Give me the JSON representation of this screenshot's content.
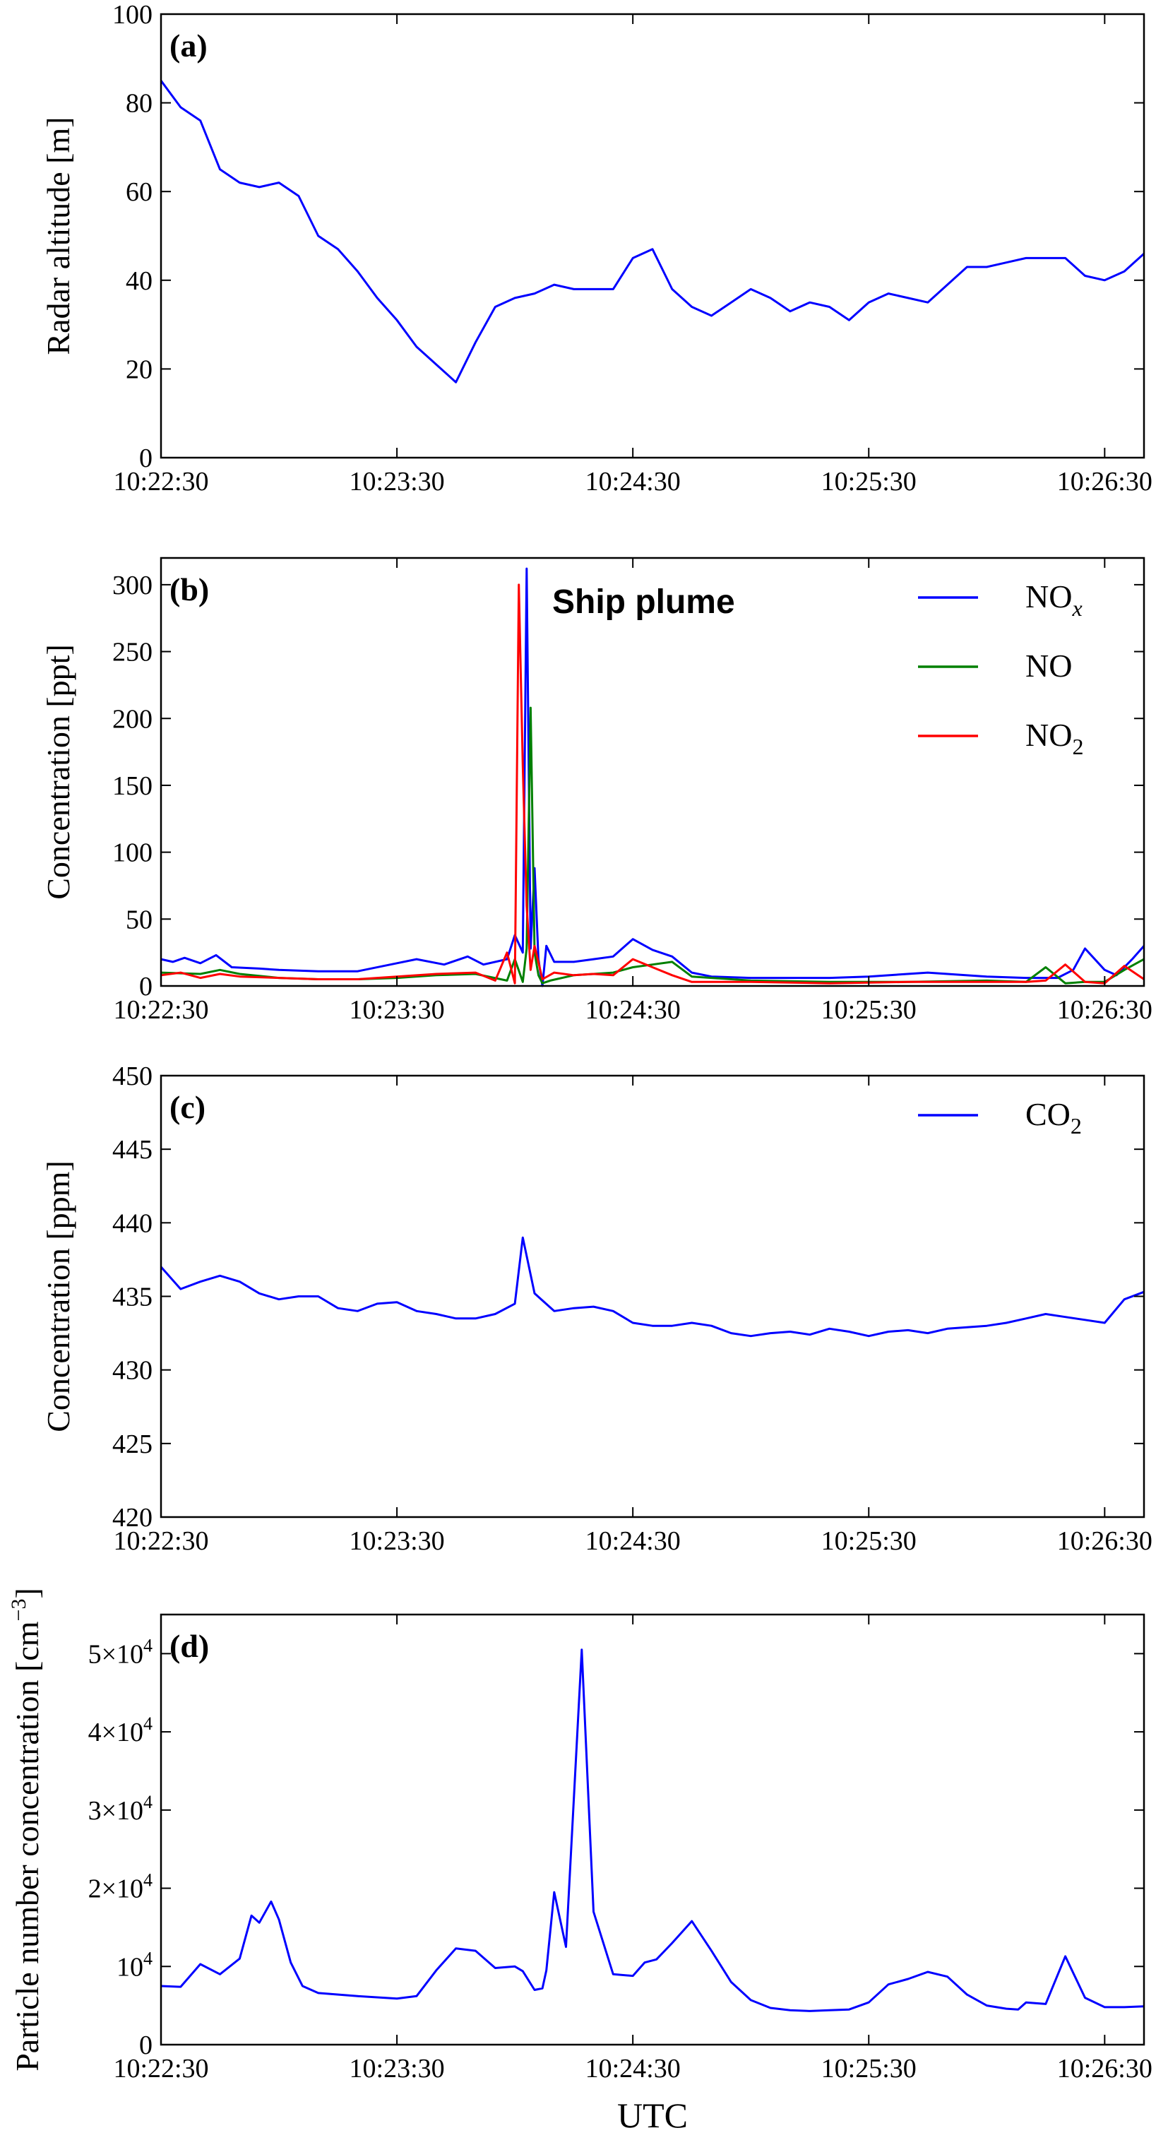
{
  "chart_data": [
    {
      "panel": "(a)",
      "type": "line",
      "ylabel": "Radar altitude [m]",
      "xlabel": "",
      "xlim": [
        "10:22:30",
        "10:26:40"
      ],
      "ylim": [
        0,
        100
      ],
      "yticks": [
        "0",
        "20",
        "40",
        "60",
        "80",
        "100"
      ],
      "xticks": [
        "10:22:30",
        "10:23:30",
        "10:24:30",
        "10:25:30",
        "10:26:30"
      ],
      "series": [
        {
          "color": "#0000ff",
          "x": [
            "10:22:30",
            "10:22:35",
            "10:22:40",
            "10:22:45",
            "10:22:50",
            "10:22:55",
            "10:23:00",
            "10:23:05",
            "10:23:10",
            "10:23:15",
            "10:23:20",
            "10:23:25",
            "10:23:30",
            "10:23:35",
            "10:23:40",
            "10:23:45",
            "10:23:50",
            "10:23:55",
            "10:24:00",
            "10:24:05",
            "10:24:10",
            "10:24:15",
            "10:24:20",
            "10:24:25",
            "10:24:30",
            "10:24:35",
            "10:24:40",
            "10:24:45",
            "10:24:50",
            "10:24:55",
            "10:25:00",
            "10:25:05",
            "10:25:10",
            "10:25:15",
            "10:25:20",
            "10:25:25",
            "10:25:30",
            "10:25:35",
            "10:25:40",
            "10:25:45",
            "10:25:50",
            "10:25:55",
            "10:26:00",
            "10:26:05",
            "10:26:10",
            "10:26:15",
            "10:26:20",
            "10:26:25",
            "10:26:30",
            "10:26:35",
            "10:26:40"
          ],
          "values": [
            85,
            79,
            76,
            65,
            62,
            61,
            62,
            59,
            50,
            47,
            42,
            36,
            31,
            25,
            21,
            17,
            26,
            34,
            36,
            37,
            39,
            38,
            38,
            38,
            45,
            47,
            38,
            34,
            32,
            35,
            38,
            36,
            33,
            35,
            34,
            31,
            35,
            37,
            36,
            35,
            39,
            43,
            43,
            44,
            45,
            45,
            45,
            41,
            40,
            42,
            46
          ]
        }
      ]
    },
    {
      "panel": "(b)",
      "type": "line",
      "ylabel": "Concentration [ppt]",
      "xlabel": "",
      "annotation": "Ship plume",
      "xlim": [
        "10:22:30",
        "10:26:40"
      ],
      "ylim": [
        0,
        320
      ],
      "yticks": [
        "0",
        "50",
        "100",
        "150",
        "200",
        "250",
        "300"
      ],
      "xticks": [
        "10:22:30",
        "10:23:30",
        "10:24:30",
        "10:25:30",
        "10:26:30"
      ],
      "legend_position": "top-right",
      "series": [
        {
          "legend_base": "NO",
          "legend_sub": "x",
          "legend_sub_italic": true,
          "color": "#0000ff",
          "x": [
            "10:22:30",
            "10:22:33",
            "10:22:36",
            "10:22:40",
            "10:22:44",
            "10:22:48",
            "10:22:55",
            "10:23:00",
            "10:23:10",
            "10:23:20",
            "10:23:30",
            "10:23:35",
            "10:23:42",
            "10:23:48",
            "10:23:52",
            "10:23:58",
            "10:24:00",
            "10:24:02",
            "10:24:03",
            "10:24:04",
            "10:24:05",
            "10:24:06",
            "10:24:07",
            "10:24:08",
            "10:24:10",
            "10:24:15",
            "10:24:20",
            "10:24:25",
            "10:24:30",
            "10:24:35",
            "10:24:40",
            "10:24:45",
            "10:24:50",
            "10:25:00",
            "10:25:10",
            "10:25:20",
            "10:25:30",
            "10:25:45",
            "10:26:00",
            "10:26:10",
            "10:26:15",
            "10:26:18",
            "10:26:22",
            "10:26:25",
            "10:26:30",
            "10:26:33",
            "10:26:37",
            "10:26:40"
          ],
          "values": [
            20,
            18,
            21,
            17,
            23,
            14,
            13,
            12,
            11,
            11,
            17,
            20,
            16,
            22,
            16,
            20,
            38,
            25,
            312,
            28,
            88,
            20,
            0,
            30,
            18,
            18,
            20,
            22,
            35,
            27,
            22,
            10,
            7,
            6,
            6,
            6,
            7,
            10,
            7,
            6,
            6,
            6,
            12,
            28,
            12,
            8,
            20,
            30
          ]
        },
        {
          "legend_base": "NO",
          "color": "#008000",
          "x": [
            "10:22:30",
            "10:22:40",
            "10:22:45",
            "10:22:50",
            "10:23:00",
            "10:23:10",
            "10:23:20",
            "10:23:30",
            "10:23:40",
            "10:23:50",
            "10:23:58",
            "10:24:00",
            "10:24:02",
            "10:24:03",
            "10:24:04",
            "10:24:05",
            "10:24:06",
            "10:24:07",
            "10:24:09",
            "10:24:15",
            "10:24:20",
            "10:24:25",
            "10:24:30",
            "10:24:35",
            "10:24:40",
            "10:24:45",
            "10:25:00",
            "10:25:20",
            "10:25:40",
            "10:26:00",
            "10:26:10",
            "10:26:15",
            "10:26:20",
            "10:26:25",
            "10:26:30",
            "10:26:35",
            "10:26:40"
          ],
          "values": [
            10,
            9,
            12,
            9,
            6,
            5,
            5,
            6,
            8,
            9,
            4,
            20,
            3,
            28,
            208,
            25,
            8,
            2,
            4,
            8,
            9,
            10,
            14,
            16,
            18,
            7,
            4,
            3,
            3,
            4,
            3,
            14,
            2,
            3,
            3,
            12,
            20
          ]
        },
        {
          "legend_base": "NO",
          "legend_sub": "2",
          "color": "#ff0000",
          "x": [
            "10:22:30",
            "10:22:35",
            "10:22:40",
            "10:22:45",
            "10:22:50",
            "10:23:00",
            "10:23:10",
            "10:23:20",
            "10:23:30",
            "10:23:40",
            "10:23:50",
            "10:23:55",
            "10:23:58",
            "10:24:00",
            "10:24:01",
            "10:24:02",
            "10:24:03",
            "10:24:04",
            "10:24:05",
            "10:24:07",
            "10:24:10",
            "10:24:15",
            "10:24:20",
            "10:24:25",
            "10:24:30",
            "10:24:35",
            "10:24:40",
            "10:24:45",
            "10:25:00",
            "10:25:20",
            "10:25:40",
            "10:26:00",
            "10:26:10",
            "10:26:15",
            "10:26:20",
            "10:26:25",
            "10:26:30",
            "10:26:35",
            "10:26:40"
          ],
          "values": [
            8,
            10,
            6,
            9,
            7,
            6,
            5,
            5,
            7,
            9,
            10,
            4,
            25,
            2,
            300,
            165,
            60,
            12,
            30,
            5,
            10,
            8,
            9,
            8,
            20,
            14,
            8,
            3,
            3,
            2,
            3,
            3,
            3,
            4,
            16,
            3,
            2,
            15,
            5
          ]
        }
      ]
    },
    {
      "panel": "(c)",
      "type": "line",
      "ylabel": "Concentration [ppm]",
      "xlabel": "",
      "xlim": [
        "10:22:30",
        "10:26:40"
      ],
      "ylim": [
        420,
        450
      ],
      "yticks": [
        "420",
        "425",
        "430",
        "435",
        "440",
        "445",
        "450"
      ],
      "xticks": [
        "10:22:30",
        "10:23:30",
        "10:24:30",
        "10:25:30",
        "10:26:30"
      ],
      "legend_position": "top-right",
      "series": [
        {
          "legend_base": "CO",
          "legend_sub": "2",
          "color": "#0000ff",
          "x": [
            "10:22:30",
            "10:22:35",
            "10:22:40",
            "10:22:45",
            "10:22:50",
            "10:22:55",
            "10:23:00",
            "10:23:05",
            "10:23:10",
            "10:23:15",
            "10:23:20",
            "10:23:25",
            "10:23:30",
            "10:23:35",
            "10:23:40",
            "10:23:45",
            "10:23:50",
            "10:23:55",
            "10:24:00",
            "10:24:02",
            "10:24:05",
            "10:24:10",
            "10:24:15",
            "10:24:20",
            "10:24:25",
            "10:24:30",
            "10:24:35",
            "10:24:40",
            "10:24:45",
            "10:24:50",
            "10:24:55",
            "10:25:00",
            "10:25:05",
            "10:25:10",
            "10:25:15",
            "10:25:20",
            "10:25:25",
            "10:25:30",
            "10:25:35",
            "10:25:40",
            "10:25:45",
            "10:25:50",
            "10:25:55",
            "10:26:00",
            "10:26:05",
            "10:26:10",
            "10:26:15",
            "10:26:20",
            "10:26:25",
            "10:26:30",
            "10:26:35",
            "10:26:40"
          ],
          "values": [
            437,
            435.5,
            436,
            436.4,
            436,
            435.2,
            434.8,
            435,
            435,
            434.2,
            434,
            434.5,
            434.6,
            434,
            433.8,
            433.5,
            433.5,
            433.8,
            434.5,
            439,
            435.2,
            434,
            434.2,
            434.3,
            434,
            433.2,
            433,
            433,
            433.2,
            433,
            432.5,
            432.3,
            432.5,
            432.6,
            432.4,
            432.8,
            432.6,
            432.3,
            432.6,
            432.7,
            432.5,
            432.8,
            432.9,
            433,
            433.2,
            433.5,
            433.8,
            433.6,
            433.4,
            433.2,
            434.8,
            435.3
          ]
        }
      ]
    },
    {
      "panel": "(d)",
      "type": "line",
      "ylabel": "Particle number concentration [cm",
      "ylabel_sup": "−3",
      "ylabel_end": "]",
      "xlabel": "UTC",
      "xlim": [
        "10:22:30",
        "10:26:40"
      ],
      "ylim": [
        0,
        55000
      ],
      "yticks": [
        "0",
        "10",
        "2×10",
        "3×10",
        "4×10",
        "5×10"
      ],
      "ytick_sup": "4",
      "xticks": [
        "10:22:30",
        "10:23:30",
        "10:24:30",
        "10:25:30",
        "10:26:30"
      ],
      "series": [
        {
          "color": "#0000ff",
          "x": [
            "10:22:30",
            "10:22:35",
            "10:22:40",
            "10:22:45",
            "10:22:50",
            "10:22:53",
            "10:22:55",
            "10:22:58",
            "10:23:00",
            "10:23:03",
            "10:23:06",
            "10:23:10",
            "10:23:20",
            "10:23:30",
            "10:23:35",
            "10:23:40",
            "10:23:45",
            "10:23:50",
            "10:23:55",
            "10:24:00",
            "10:24:02",
            "10:24:05",
            "10:24:07",
            "10:24:08",
            "10:24:10",
            "10:24:13",
            "10:24:17",
            "10:24:20",
            "10:24:25",
            "10:24:30",
            "10:24:33",
            "10:24:36",
            "10:24:40",
            "10:24:45",
            "10:24:50",
            "10:24:55",
            "10:25:00",
            "10:25:05",
            "10:25:10",
            "10:25:15",
            "10:25:20",
            "10:25:25",
            "10:25:30",
            "10:25:35",
            "10:25:40",
            "10:25:45",
            "10:25:50",
            "10:25:55",
            "10:26:00",
            "10:26:05",
            "10:26:08",
            "10:26:10",
            "10:26:15",
            "10:26:20",
            "10:26:25",
            "10:26:30",
            "10:26:35",
            "10:26:40"
          ],
          "values": [
            7500,
            7400,
            10300,
            9000,
            11000,
            16500,
            15600,
            18300,
            16000,
            10500,
            7500,
            6600,
            6200,
            5900,
            6200,
            9500,
            12300,
            12000,
            9800,
            10000,
            9400,
            7000,
            7200,
            9500,
            19500,
            12500,
            50500,
            17000,
            9000,
            8800,
            10500,
            10900,
            13000,
            15800,
            12000,
            8000,
            5700,
            4700,
            4400,
            4300,
            4400,
            4500,
            5400,
            7700,
            8400,
            9300,
            8700,
            6400,
            5000,
            4600,
            4500,
            5400,
            5200,
            11300,
            6000,
            4800,
            4800,
            4900
          ]
        }
      ]
    }
  ]
}
